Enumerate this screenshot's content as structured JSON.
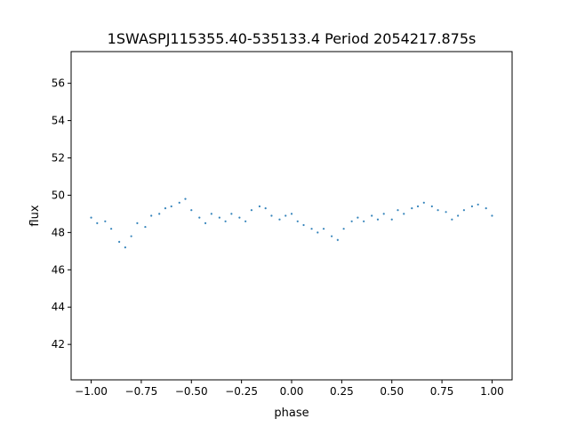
{
  "chart_data": {
    "type": "scatter",
    "title": "1SWASPJ115355.40-535133.4 Period 2054217.875s",
    "xlabel": "phase",
    "ylabel": "flux",
    "xlim": [
      -1.1,
      1.1
    ],
    "ylim": [
      40.1,
      57.7
    ],
    "xticks": [
      -1.0,
      -0.75,
      -0.5,
      -0.25,
      0.0,
      0.25,
      0.5,
      0.75,
      1.0
    ],
    "xtick_labels": [
      "−1.00",
      "−0.75",
      "−0.50",
      "−0.25",
      "0.00",
      "0.25",
      "0.50",
      "0.75",
      "1.00"
    ],
    "yticks": [
      42,
      44,
      46,
      48,
      50,
      52,
      54,
      56
    ],
    "ytick_labels": [
      "42",
      "44",
      "46",
      "48",
      "50",
      "52",
      "54",
      "56"
    ],
    "grid": false,
    "point_color": "#1f77b4",
    "series": [
      {
        "x": [
          -1.0,
          -0.97,
          -0.93,
          -0.9,
          -0.86,
          -0.83,
          -0.8,
          -0.77,
          -0.73,
          -0.7,
          -0.66,
          -0.63,
          -0.6,
          -0.56,
          -0.53,
          -0.5,
          -0.46,
          -0.43,
          -0.4,
          -0.36,
          -0.33,
          -0.3,
          -0.26,
          -0.23,
          -0.2,
          -0.16,
          -0.13,
          -0.1,
          -0.06,
          -0.03,
          0.0,
          0.03,
          0.06,
          0.1,
          0.13,
          0.16,
          0.2,
          0.23,
          0.26,
          0.3,
          0.33,
          0.36,
          0.4,
          0.43,
          0.46,
          0.5,
          0.53,
          0.56,
          0.6,
          0.63,
          0.66,
          0.7,
          0.73,
          0.77,
          0.8,
          0.83,
          0.86,
          0.9,
          0.93,
          0.97,
          1.0
        ],
        "y": [
          48.8,
          48.5,
          48.6,
          48.2,
          47.5,
          47.2,
          47.8,
          48.5,
          48.3,
          48.9,
          49.0,
          49.3,
          49.4,
          49.6,
          49.8,
          49.2,
          48.8,
          48.5,
          49.0,
          48.8,
          48.6,
          49.0,
          48.8,
          48.6,
          49.2,
          49.4,
          49.3,
          48.9,
          48.7,
          48.9,
          49.0,
          48.6,
          48.4,
          48.2,
          48.0,
          48.2,
          47.8,
          47.6,
          48.2,
          48.6,
          48.8,
          48.6,
          48.9,
          48.7,
          49.0,
          48.7,
          49.2,
          49.0,
          49.3,
          49.4,
          49.6,
          49.4,
          49.2,
          49.1,
          48.7,
          48.9,
          49.2,
          49.4,
          49.5,
          49.3,
          48.9
        ]
      }
    ]
  }
}
